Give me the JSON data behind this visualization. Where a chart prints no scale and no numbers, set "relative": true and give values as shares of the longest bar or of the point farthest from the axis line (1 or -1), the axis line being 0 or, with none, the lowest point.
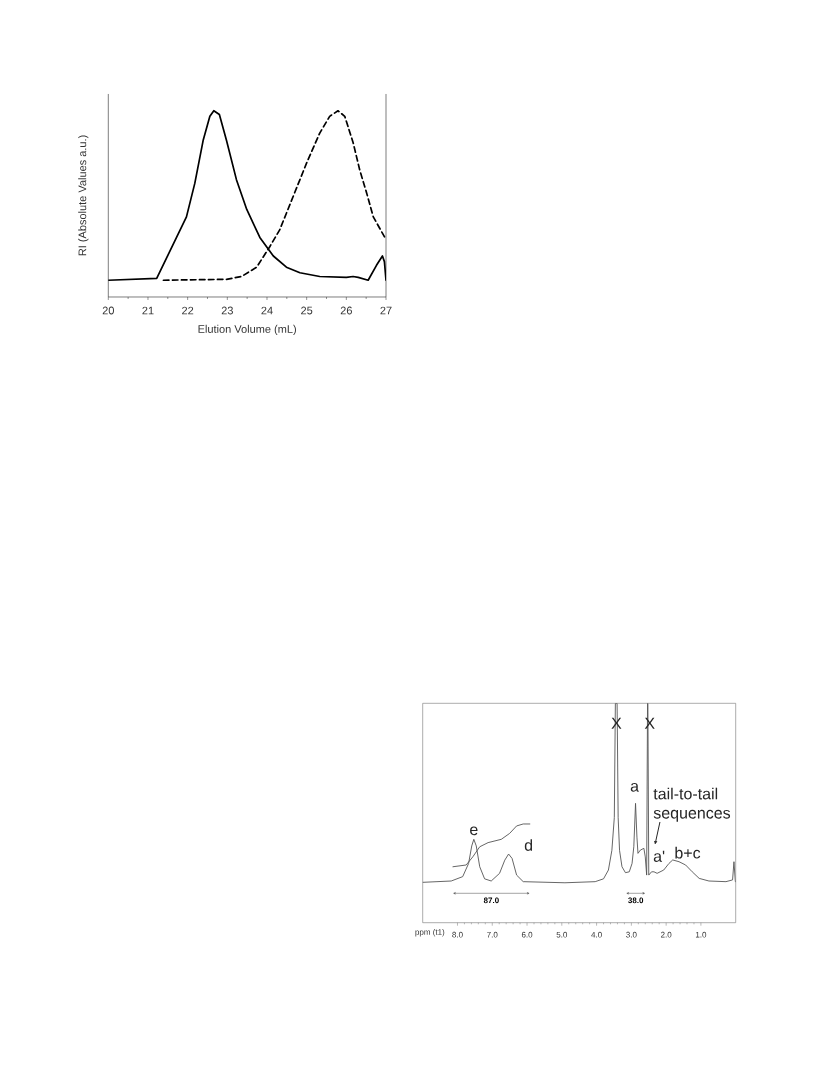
{
  "chart_data": [
    {
      "type": "line",
      "xlabel": "Elution Volume (mL)",
      "ylabel": "RI (Absolute Values a.u.)",
      "relative": true,
      "xlim": [
        20,
        27
      ],
      "xticks": [
        20,
        21,
        22,
        23,
        24,
        25,
        26,
        27
      ],
      "series": [
        {
          "color": "#000000",
          "line_style": "solid",
          "x": [
            20,
            21.22,
            21.47,
            21.72,
            21.97,
            22.18,
            22.39,
            22.56,
            22.66,
            22.8,
            22.98,
            23.23,
            23.49,
            23.82,
            24.16,
            24.49,
            24.83,
            25.33,
            26.0,
            26.17,
            26.3,
            26.55,
            26.76,
            26.91,
            26.96,
            27
          ],
          "values": [
            0.09,
            0.1,
            0.21,
            0.32,
            0.43,
            0.61,
            0.84,
            0.97,
            1.0,
            0.98,
            0.84,
            0.63,
            0.47,
            0.32,
            0.22,
            0.16,
            0.13,
            0.11,
            0.105,
            0.11,
            0.105,
            0.09,
            0.17,
            0.22,
            0.19,
            0.09
          ]
        },
        {
          "color": "#000000",
          "line_style": "dashed",
          "x": [
            21.39,
            22.98,
            23.36,
            23.74,
            24.07,
            24.32,
            24.66,
            25.0,
            25.33,
            25.58,
            25.79,
            25.96,
            26.17,
            26.34,
            26.51,
            26.68,
            26.97
          ],
          "values": [
            0.09,
            0.095,
            0.11,
            0.16,
            0.27,
            0.36,
            0.54,
            0.72,
            0.88,
            0.97,
            1.0,
            0.97,
            0.83,
            0.68,
            0.56,
            0.43,
            0.32
          ]
        }
      ]
    },
    {
      "type": "line",
      "xlabel": "ppm (t1)",
      "relative": true,
      "xlim": [
        9,
        0
      ],
      "xticks": [
        {
          "value": 8,
          "label": "8.0"
        },
        {
          "value": 7,
          "label": "7.0"
        },
        {
          "value": 6,
          "label": "6.0"
        },
        {
          "value": 5,
          "label": "5.0"
        },
        {
          "value": 4,
          "label": "4.0"
        },
        {
          "value": 3,
          "label": "3.0"
        },
        {
          "value": 2,
          "label": "2.0"
        },
        {
          "value": 1,
          "label": "1.0"
        }
      ],
      "series": [
        {
          "color": "#555555",
          "x": [
            9.0,
            8.18,
            7.85,
            7.68,
            7.59,
            7.53,
            7.46,
            7.36,
            7.22,
            7.03,
            6.79,
            6.64,
            6.53,
            6.43,
            6.3,
            6.11,
            4.91,
            4.04,
            3.8,
            3.66,
            3.56,
            3.49,
            3.46,
            3.41,
            3.38,
            3.34,
            3.27,
            3.17,
            3.06,
            2.98,
            2.93,
            2.88,
            2.84,
            2.81,
            2.74,
            2.64,
            2.6,
            2.56,
            2.535,
            2.525,
            2.5,
            2.42,
            2.35,
            2.26,
            2.07,
            1.92,
            1.81,
            1.63,
            1.44,
            1.25,
            1.05,
            0.77,
            0.28,
            0.09,
            0.05,
            0.01,
            0.0
          ],
          "values": [
            0.184,
            0.19,
            0.21,
            0.27,
            0.35,
            0.38,
            0.35,
            0.255,
            0.2,
            0.19,
            0.225,
            0.285,
            0.313,
            0.293,
            0.217,
            0.187,
            0.182,
            0.187,
            0.2,
            0.24,
            0.33,
            0.48,
            1.0,
            1.0,
            0.48,
            0.33,
            0.255,
            0.228,
            0.232,
            0.27,
            0.346,
            0.544,
            0.39,
            0.316,
            0.331,
            0.339,
            0.3,
            0.217,
            1.0,
            1.0,
            0.217,
            0.232,
            0.232,
            0.225,
            0.24,
            0.27,
            0.286,
            0.278,
            0.263,
            0.232,
            0.202,
            0.19,
            0.187,
            0.195,
            0.278,
            0.187,
            0.187
          ]
        },
        {
          "color": "#555555",
          "x": [
            8.13,
            7.75,
            7.56,
            7.36,
            7.12,
            6.74,
            6.5,
            6.3,
            6.11,
            5.92
          ],
          "values": [
            0.255,
            0.263,
            0.3,
            0.346,
            0.365,
            0.38,
            0.407,
            0.441,
            0.45,
            0.45
          ]
        }
      ],
      "annotations": [
        {
          "text": "X",
          "x": 3.43,
          "y": 1.0
        },
        {
          "text": "X",
          "x": 2.53,
          "y": 1.0
        },
        {
          "text": "a",
          "x": 2.88,
          "y": 0.544
        },
        "tail-to-tail sequences",
        {
          "text": "a'",
          "x": 2.26,
          "y": 0.225
        },
        {
          "text": "b+c",
          "x": 1.63,
          "y": 0.278
        },
        {
          "text": "e",
          "x": 7.53,
          "y": 0.38
        },
        {
          "text": "d",
          "x": 6.53,
          "y": 0.313
        },
        "87.0",
        "38.0"
      ]
    }
  ]
}
